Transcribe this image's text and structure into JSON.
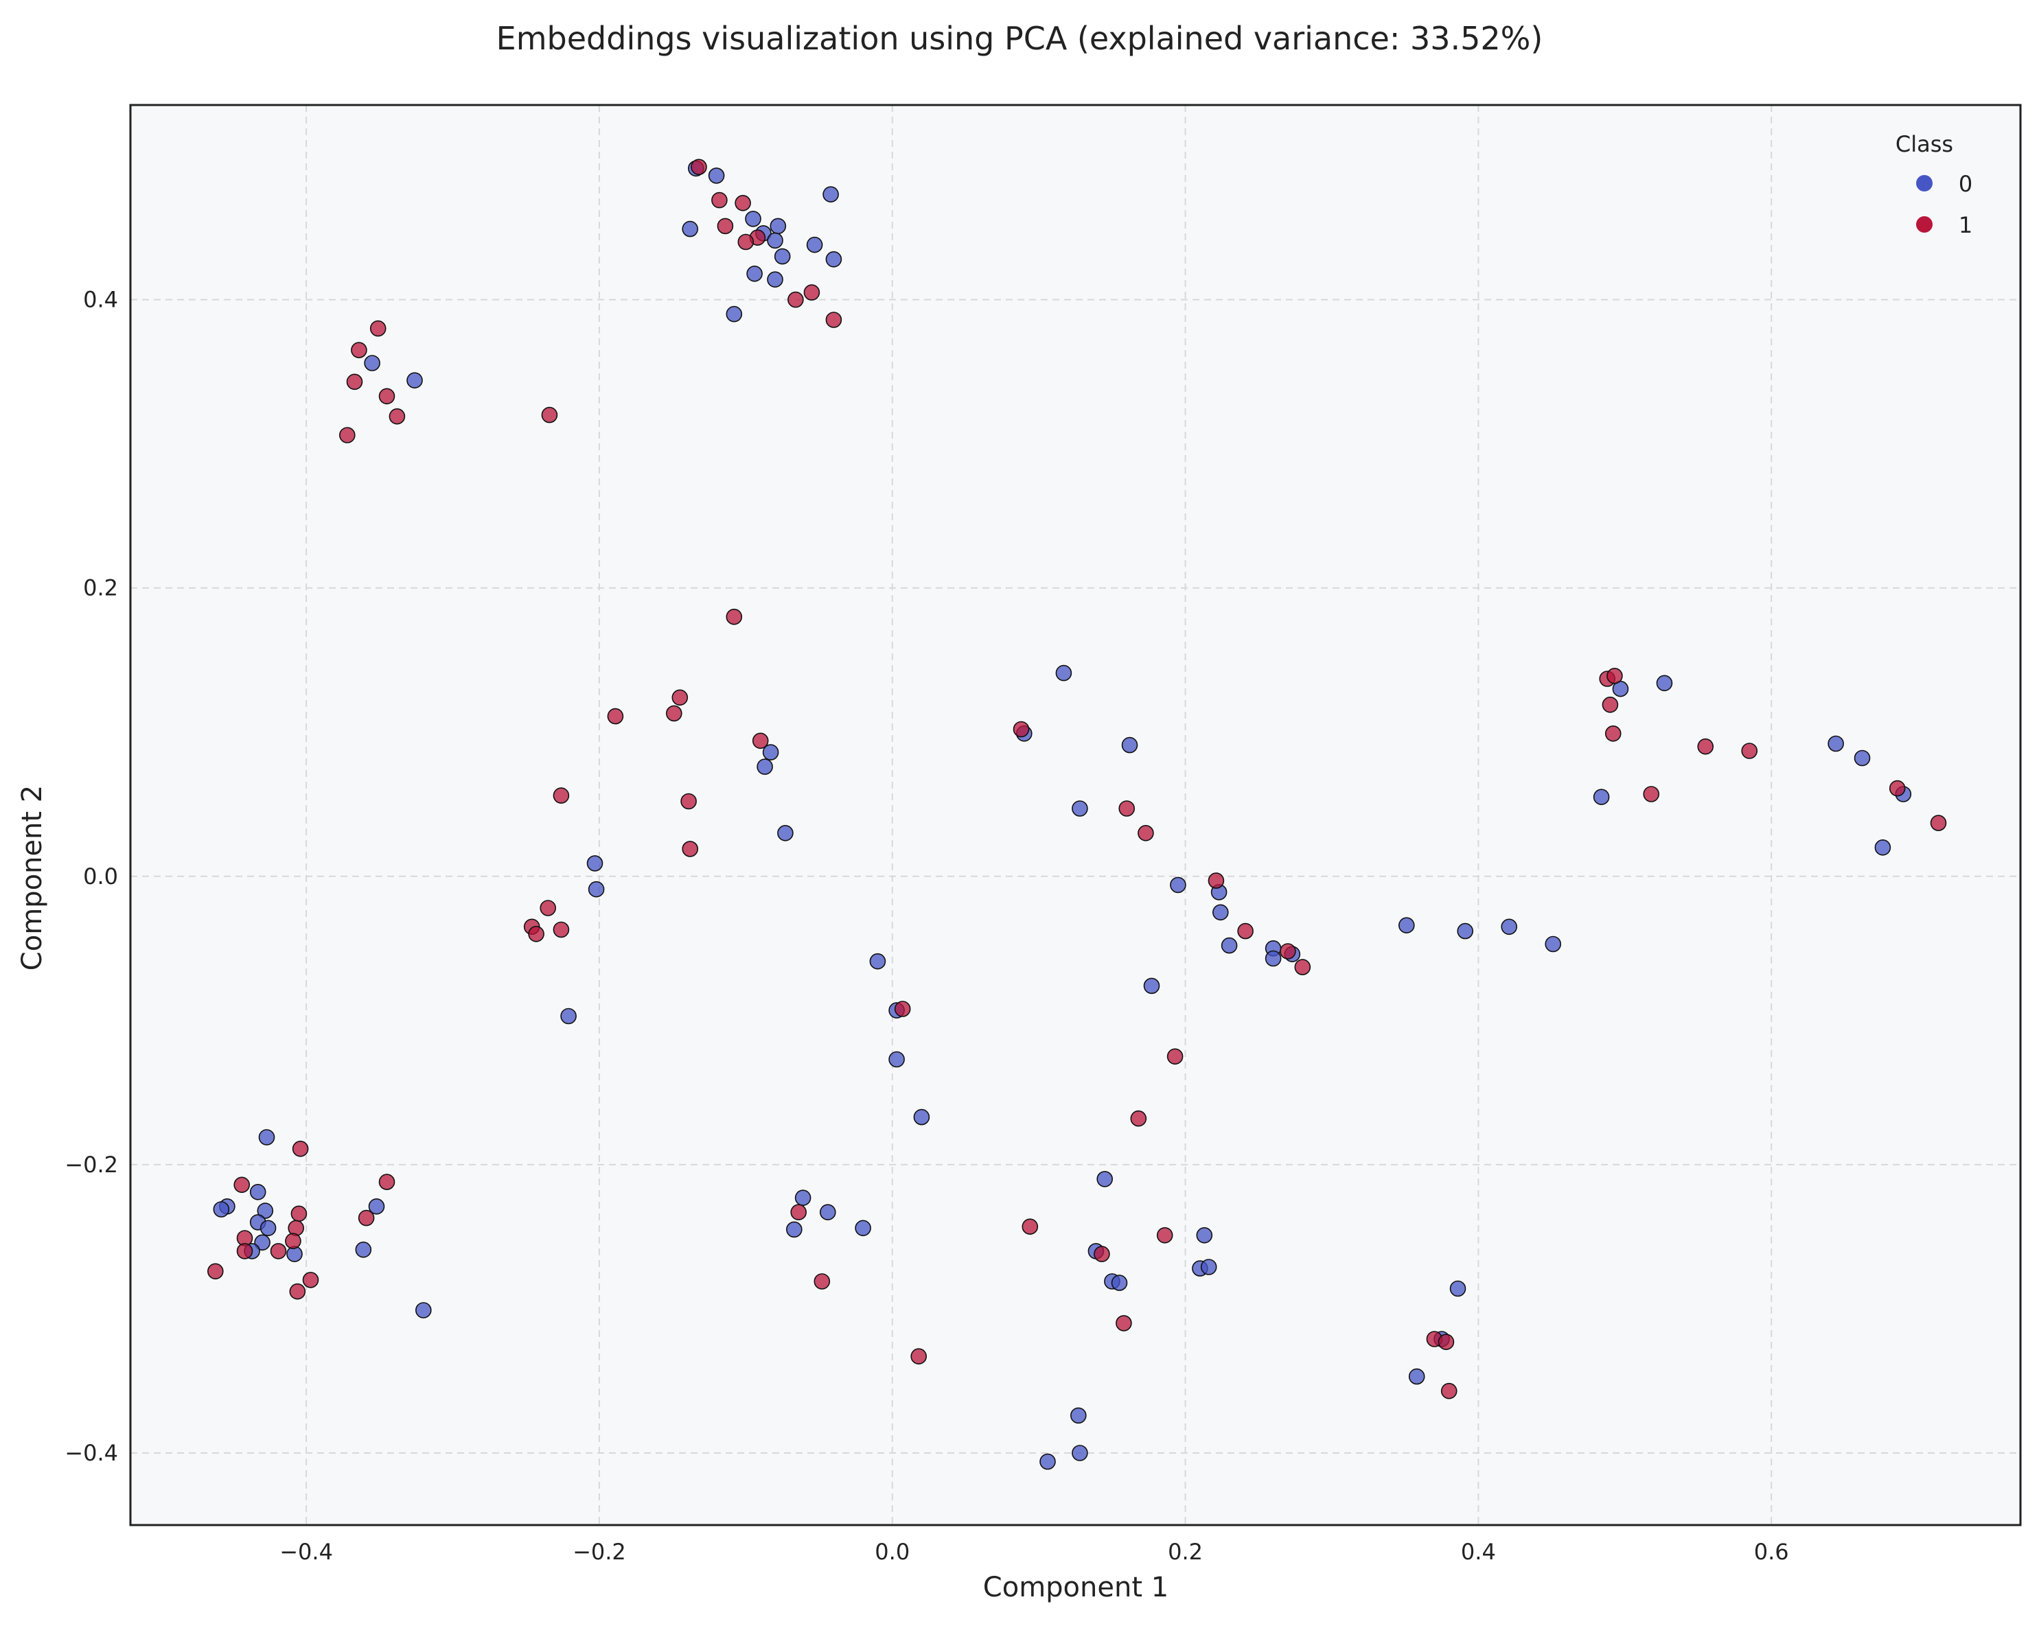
{
  "chart_data": {
    "type": "scatter",
    "title": "Embeddings visualization using PCA (explained variance: 33.52%)",
    "xlabel": "Component 1",
    "ylabel": "Component 2",
    "xlim": [
      -0.52,
      0.77
    ],
    "ylim": [
      -0.45,
      0.535
    ],
    "xticks": [
      -0.4,
      -0.2,
      0.0,
      0.2,
      0.4,
      0.6
    ],
    "yticks": [
      -0.4,
      -0.2,
      0.0,
      0.2,
      0.4
    ],
    "xtick_labels": [
      "−0.4",
      "−0.2",
      "0.0",
      "0.2",
      "0.4",
      "0.6"
    ],
    "ytick_labels": [
      "−0.4",
      "−0.2",
      "0.0",
      "0.2",
      "0.4"
    ],
    "grid": true,
    "legend": {
      "title": "Class",
      "placement": "top-right"
    },
    "colors": {
      "background": "#f7f8fa",
      "class0": "#4656c4",
      "class1": "#b8163a"
    },
    "series": [
      {
        "name": "0",
        "color": "#4656c4",
        "points": [
          [
            -0.134,
            0.491
          ],
          [
            -0.12,
            0.486
          ],
          [
            -0.042,
            0.473
          ],
          [
            -0.138,
            0.449
          ],
          [
            -0.095,
            0.456
          ],
          [
            -0.078,
            0.451
          ],
          [
            -0.088,
            0.446
          ],
          [
            -0.08,
            0.441
          ],
          [
            -0.053,
            0.438
          ],
          [
            -0.075,
            0.43
          ],
          [
            -0.04,
            0.428
          ],
          [
            -0.094,
            0.418
          ],
          [
            -0.08,
            0.414
          ],
          [
            -0.108,
            0.39
          ],
          [
            -0.355,
            0.356
          ],
          [
            -0.326,
            0.344
          ],
          [
            0.117,
            0.141
          ],
          [
            0.09,
            0.099
          ],
          [
            0.162,
            0.091
          ],
          [
            -0.083,
            0.086
          ],
          [
            -0.087,
            0.076
          ],
          [
            0.128,
            0.047
          ],
          [
            -0.073,
            0.03
          ],
          [
            -0.203,
            0.009
          ],
          [
            -0.202,
            -0.009
          ],
          [
            0.195,
            -0.006
          ],
          [
            0.223,
            -0.011
          ],
          [
            0.224,
            -0.025
          ],
          [
            0.23,
            -0.048
          ],
          [
            0.26,
            -0.05
          ],
          [
            0.26,
            -0.057
          ],
          [
            0.273,
            -0.054
          ],
          [
            0.177,
            -0.076
          ],
          [
            -0.01,
            -0.059
          ],
          [
            0.003,
            -0.093
          ],
          [
            0.003,
            -0.127
          ],
          [
            0.02,
            -0.167
          ],
          [
            -0.221,
            -0.097
          ],
          [
            0.351,
            -0.034
          ],
          [
            0.391,
            -0.038
          ],
          [
            0.421,
            -0.035
          ],
          [
            0.451,
            -0.047
          ],
          [
            0.527,
            0.134
          ],
          [
            0.497,
            0.13
          ],
          [
            0.484,
            0.055
          ],
          [
            0.644,
            0.092
          ],
          [
            0.662,
            0.082
          ],
          [
            0.69,
            0.057
          ],
          [
            0.676,
            0.02
          ],
          [
            -0.427,
            -0.181
          ],
          [
            -0.433,
            -0.219
          ],
          [
            -0.454,
            -0.229
          ],
          [
            -0.458,
            -0.231
          ],
          [
            -0.428,
            -0.232
          ],
          [
            -0.433,
            -0.24
          ],
          [
            -0.426,
            -0.244
          ],
          [
            -0.43,
            -0.254
          ],
          [
            -0.437,
            -0.26
          ],
          [
            -0.408,
            -0.262
          ],
          [
            -0.352,
            -0.229
          ],
          [
            -0.361,
            -0.259
          ],
          [
            -0.32,
            -0.301
          ],
          [
            -0.061,
            -0.223
          ],
          [
            -0.067,
            -0.245
          ],
          [
            -0.044,
            -0.233
          ],
          [
            -0.02,
            -0.244
          ],
          [
            0.145,
            -0.21
          ],
          [
            0.139,
            -0.26
          ],
          [
            0.15,
            -0.281
          ],
          [
            0.155,
            -0.282
          ],
          [
            0.213,
            -0.249
          ],
          [
            0.21,
            -0.272
          ],
          [
            0.216,
            -0.271
          ],
          [
            0.127,
            -0.374
          ],
          [
            0.128,
            -0.4
          ],
          [
            0.106,
            -0.406
          ],
          [
            0.386,
            -0.286
          ],
          [
            0.375,
            -0.321
          ],
          [
            0.358,
            -0.347
          ]
        ]
      },
      {
        "name": "1",
        "color": "#b8163a",
        "points": [
          [
            -0.132,
            0.492
          ],
          [
            -0.118,
            0.469
          ],
          [
            -0.102,
            0.467
          ],
          [
            -0.114,
            0.451
          ],
          [
            -0.092,
            0.443
          ],
          [
            -0.1,
            0.44
          ],
          [
            -0.055,
            0.405
          ],
          [
            -0.066,
            0.4
          ],
          [
            -0.04,
            0.386
          ],
          [
            -0.351,
            0.38
          ],
          [
            -0.364,
            0.365
          ],
          [
            -0.367,
            0.343
          ],
          [
            -0.345,
            0.333
          ],
          [
            -0.338,
            0.319
          ],
          [
            -0.372,
            0.306
          ],
          [
            -0.234,
            0.32
          ],
          [
            -0.108,
            0.18
          ],
          [
            -0.145,
            0.124
          ],
          [
            -0.189,
            0.111
          ],
          [
            -0.149,
            0.113
          ],
          [
            -0.09,
            0.094
          ],
          [
            -0.139,
            0.052
          ],
          [
            -0.226,
            0.056
          ],
          [
            -0.138,
            0.019
          ],
          [
            -0.235,
            -0.022
          ],
          [
            -0.246,
            -0.035
          ],
          [
            -0.243,
            -0.04
          ],
          [
            -0.226,
            -0.037
          ],
          [
            0.088,
            0.102
          ],
          [
            0.16,
            0.047
          ],
          [
            0.173,
            0.03
          ],
          [
            0.221,
            -0.003
          ],
          [
            0.241,
            -0.038
          ],
          [
            0.27,
            -0.052
          ],
          [
            0.28,
            -0.063
          ],
          [
            0.007,
            -0.092
          ],
          [
            0.193,
            -0.125
          ],
          [
            0.168,
            -0.168
          ],
          [
            0.488,
            0.137
          ],
          [
            0.493,
            0.139
          ],
          [
            0.49,
            0.119
          ],
          [
            0.492,
            0.099
          ],
          [
            0.555,
            0.09
          ],
          [
            0.585,
            0.087
          ],
          [
            0.518,
            0.057
          ],
          [
            0.686,
            0.061
          ],
          [
            0.714,
            0.037
          ],
          [
            -0.444,
            -0.214
          ],
          [
            -0.404,
            -0.189
          ],
          [
            -0.345,
            -0.212
          ],
          [
            -0.405,
            -0.234
          ],
          [
            -0.407,
            -0.244
          ],
          [
            -0.359,
            -0.237
          ],
          [
            -0.442,
            -0.251
          ],
          [
            -0.409,
            -0.253
          ],
          [
            -0.419,
            -0.26
          ],
          [
            -0.442,
            -0.26
          ],
          [
            -0.397,
            -0.28
          ],
          [
            -0.406,
            -0.288
          ],
          [
            -0.462,
            -0.274
          ],
          [
            -0.064,
            -0.233
          ],
          [
            -0.048,
            -0.281
          ],
          [
            0.018,
            -0.333
          ],
          [
            0.094,
            -0.243
          ],
          [
            0.143,
            -0.262
          ],
          [
            0.186,
            -0.249
          ],
          [
            0.158,
            -0.31
          ],
          [
            0.37,
            -0.321
          ],
          [
            0.378,
            -0.323
          ],
          [
            0.38,
            -0.357
          ]
        ]
      }
    ]
  }
}
